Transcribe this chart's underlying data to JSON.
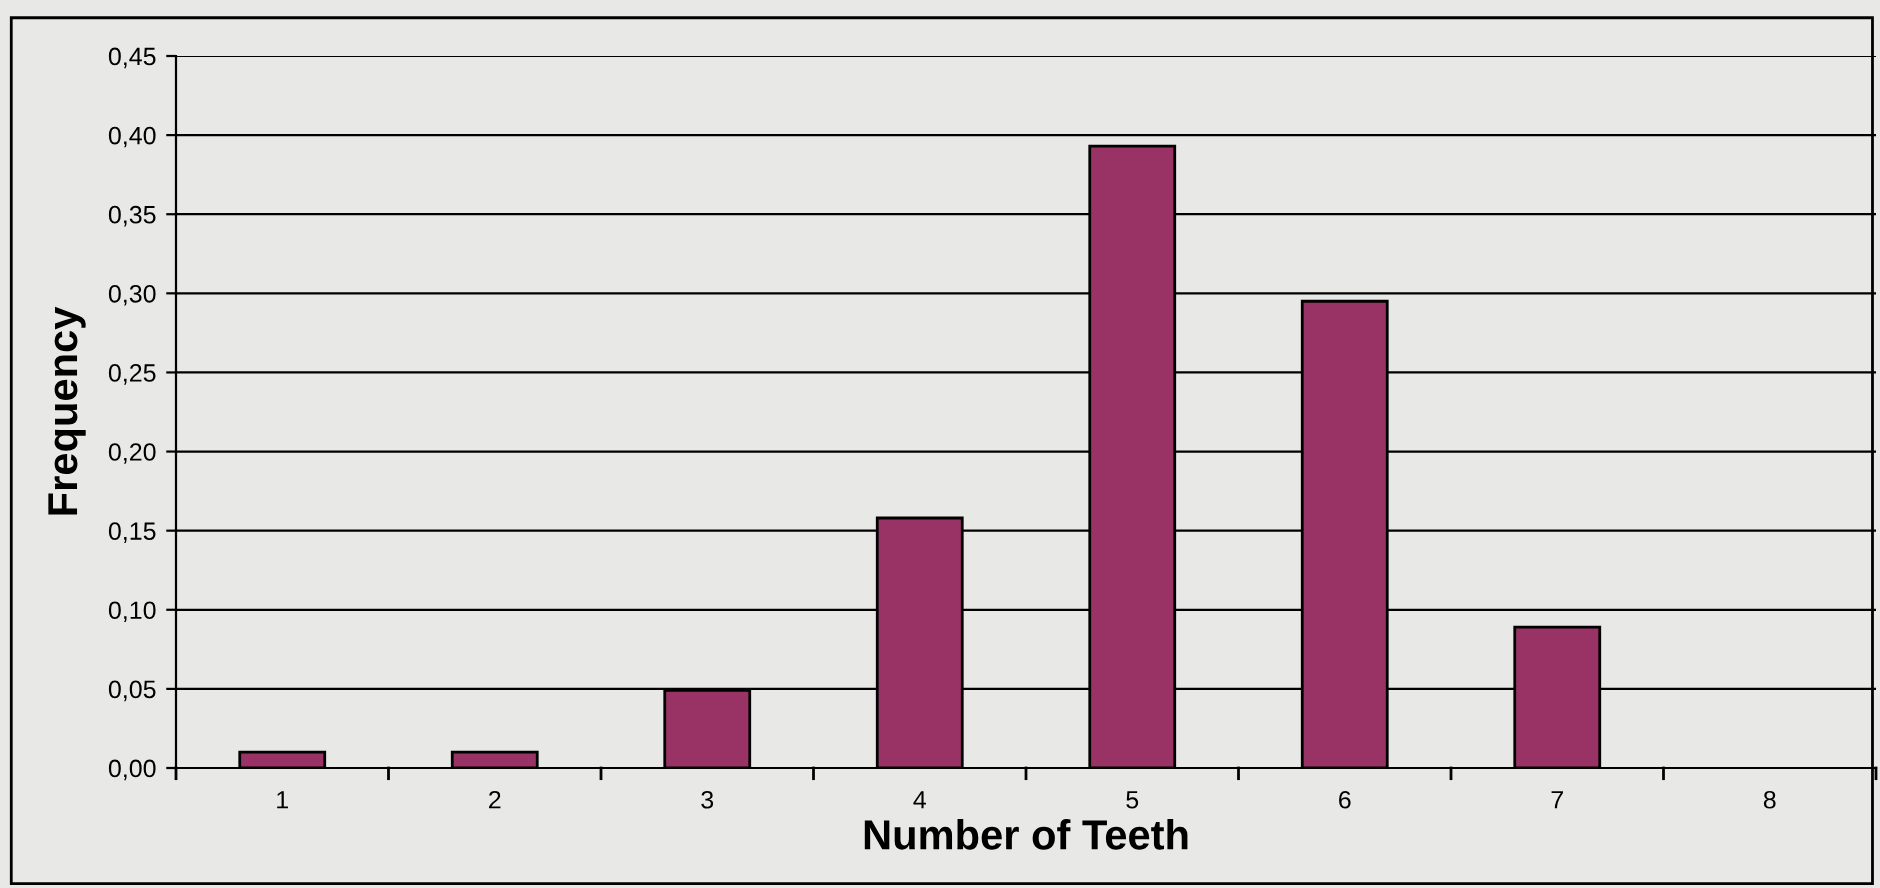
{
  "chart_data": {
    "type": "bar",
    "xlabel": "Number of Teeth",
    "ylabel": "Frequency",
    "categories": [
      "1",
      "2",
      "3",
      "4",
      "5",
      "6",
      "7",
      "8"
    ],
    "values": [
      0.01,
      0.01,
      0.049,
      0.158,
      0.393,
      0.295,
      0.089,
      0
    ],
    "color": "#993366",
    "ylim": [
      0,
      0.45
    ],
    "yticks": [
      {
        "value": 0,
        "label": "0,00"
      },
      {
        "value": 0.05,
        "label": "0,05"
      },
      {
        "value": 0.1,
        "label": "0,10"
      },
      {
        "value": 0.15,
        "label": "0,15"
      },
      {
        "value": 0.2,
        "label": "0,20"
      },
      {
        "value": 0.25,
        "label": "0,25"
      },
      {
        "value": 0.3,
        "label": "0,30"
      },
      {
        "value": 0.35,
        "label": "0,35"
      },
      {
        "value": 0.4,
        "label": "0,40"
      },
      {
        "value": 0.45,
        "label": "0,45"
      }
    ],
    "grid": "y",
    "legend": false
  }
}
